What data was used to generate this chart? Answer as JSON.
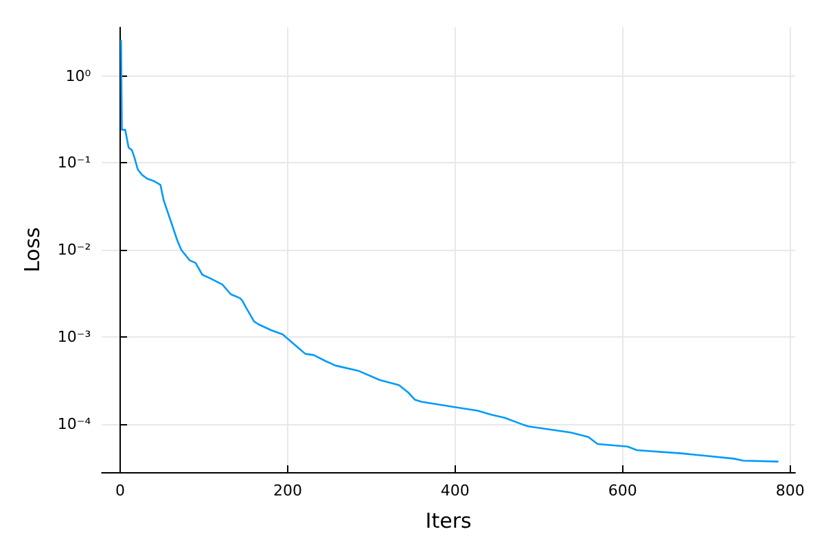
{
  "chart_data": {
    "type": "line",
    "xlabel": "Iters",
    "ylabel": "Loss",
    "log": "y",
    "grid": true,
    "xlim": [
      -22,
      806
    ],
    "xticks": [
      0,
      200,
      400,
      600,
      800
    ],
    "ylim": [
      2.8e-05,
      3.6
    ],
    "yticks": [
      {
        "value": 1,
        "label": "10⁰"
      },
      {
        "value": 0.1,
        "label": "10⁻¹"
      },
      {
        "value": 0.01,
        "label": "10⁻²"
      },
      {
        "value": 0.001,
        "label": "10⁻³"
      },
      {
        "value": 0.0001,
        "label": "10⁻⁴"
      }
    ],
    "series": [
      {
        "color": "#009af9",
        "x": [
          1,
          2,
          6,
          10,
          14,
          17,
          21,
          26,
          32,
          40,
          48,
          52,
          60,
          68,
          73,
          83,
          90,
          98,
          108,
          122,
          132,
          143,
          146,
          150,
          160,
          165,
          180,
          194,
          221,
          231,
          245,
          257,
          284,
          310,
          333,
          344,
          352,
          360,
          397,
          427,
          443,
          459,
          479,
          487,
          538,
          559,
          570,
          606,
          617,
          670,
          733,
          744,
          786
        ],
        "values": [
          2.6,
          0.24,
          0.24,
          0.15,
          0.14,
          0.115,
          0.084,
          0.073,
          0.066,
          0.062,
          0.056,
          0.037,
          0.022,
          0.013,
          0.01,
          0.0076,
          0.0071,
          0.0052,
          0.0047,
          0.004,
          0.0031,
          0.0028,
          0.0026,
          0.0022,
          0.0015,
          0.0014,
          0.0012,
          0.00107,
          0.00064,
          0.00062,
          0.00053,
          0.00047,
          0.00041,
          0.00032,
          0.00028,
          0.00023,
          0.00019,
          0.00018,
          0.000158,
          0.000142,
          0.000128,
          0.000118,
          0.0001,
          9.4e-05,
          8e-05,
          7.1e-05,
          5.9e-05,
          5.5e-05,
          5e-05,
          4.6e-05,
          4e-05,
          3.8e-05,
          3.7e-05
        ]
      }
    ]
  }
}
